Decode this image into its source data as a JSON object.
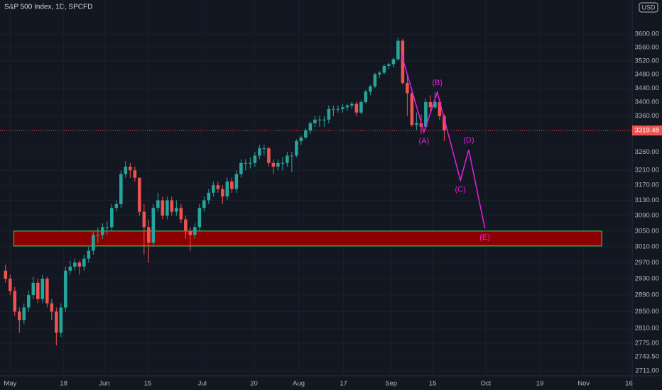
{
  "chart_data": {
    "type": "candlestick",
    "title": "S&P 500 Index, 1D, SPCFD",
    "currency": "USD",
    "yscale": "log",
    "ylim": [
      2700,
      3705
    ],
    "xlim": [
      -1.2,
      135.7
    ],
    "yticks": [
      {
        "value": 3600,
        "label": "3600.00"
      },
      {
        "value": 3560,
        "label": "3560.00"
      },
      {
        "value": 3520,
        "label": "3520.00"
      },
      {
        "value": 3480,
        "label": "3480.00"
      },
      {
        "value": 3440,
        "label": "3440.00"
      },
      {
        "value": 3400,
        "label": "3400.00"
      },
      {
        "value": 3360,
        "label": "3360.00"
      },
      {
        "value": 3260,
        "label": "3260.00"
      },
      {
        "value": 3210,
        "label": "3210.00"
      },
      {
        "value": 3170,
        "label": "3170.00"
      },
      {
        "value": 3130,
        "label": "3130.00"
      },
      {
        "value": 3090,
        "label": "3090.00"
      },
      {
        "value": 3050,
        "label": "3050.00"
      },
      {
        "value": 3010,
        "label": "3010.00"
      },
      {
        "value": 2970,
        "label": "2970.00"
      },
      {
        "value": 2930,
        "label": "2930.00"
      },
      {
        "value": 2890,
        "label": "2890.00"
      },
      {
        "value": 2850,
        "label": "2850.00"
      },
      {
        "value": 2810,
        "label": "2810.00"
      },
      {
        "value": 2775,
        "label": "2775.00"
      },
      {
        "value": 2743.5,
        "label": "2743.50"
      },
      {
        "value": 2711,
        "label": "2711.00"
      }
    ],
    "xticks": [
      {
        "value": 1,
        "label": "May"
      },
      {
        "value": 12.6,
        "label": "18"
      },
      {
        "value": 21.4,
        "label": "Jun"
      },
      {
        "value": 30.8,
        "label": "15"
      },
      {
        "value": 42.6,
        "label": "Jul"
      },
      {
        "value": 53.8,
        "label": "20"
      },
      {
        "value": 63.5,
        "label": "Aug"
      },
      {
        "value": 73.2,
        "label": "17"
      },
      {
        "value": 83.5,
        "label": "Sep"
      },
      {
        "value": 92.5,
        "label": "15"
      },
      {
        "value": 104,
        "label": "Oct"
      },
      {
        "value": 115.7,
        "label": "19"
      },
      {
        "value": 125.2,
        "label": "Nov"
      },
      {
        "value": 135,
        "label": "16"
      }
    ],
    "up_color": "#26a69a",
    "down_color": "#ef5350",
    "grid": true,
    "last_price": 3319.48,
    "candles": [
      [
        2950,
        2965,
        2920,
        2930
      ],
      [
        2930,
        2940,
        2890,
        2900
      ],
      [
        2900,
        2910,
        2840,
        2850
      ],
      [
        2850,
        2860,
        2800,
        2830
      ],
      [
        2830,
        2870,
        2820,
        2860
      ],
      [
        2860,
        2900,
        2850,
        2890
      ],
      [
        2890,
        2935,
        2880,
        2920
      ],
      [
        2920,
        2930,
        2870,
        2880
      ],
      [
        2880,
        2940,
        2870,
        2930
      ],
      [
        2930,
        2935,
        2860,
        2870
      ],
      [
        2870,
        2880,
        2830,
        2850
      ],
      [
        2850,
        2860,
        2770,
        2800
      ],
      [
        2800,
        2870,
        2790,
        2860
      ],
      [
        2860,
        2960,
        2850,
        2950
      ],
      [
        2950,
        2975,
        2940,
        2960
      ],
      [
        2960,
        2980,
        2950,
        2970
      ],
      [
        2970,
        2975,
        2940,
        2960
      ],
      [
        2960,
        2990,
        2950,
        2980
      ],
      [
        2980,
        3010,
        2970,
        3000
      ],
      [
        3000,
        3050,
        2990,
        3040
      ],
      [
        3040,
        3060,
        3020,
        3040
      ],
      [
        3040,
        3070,
        3030,
        3060
      ],
      [
        3060,
        3075,
        3040,
        3060
      ],
      [
        3060,
        3120,
        3050,
        3110
      ],
      [
        3110,
        3130,
        3100,
        3120
      ],
      [
        3120,
        3210,
        3110,
        3200
      ],
      [
        3200,
        3235,
        3190,
        3220
      ],
      [
        3220,
        3230,
        3190,
        3210
      ],
      [
        3210,
        3220,
        3180,
        3190
      ],
      [
        3190,
        3190,
        3090,
        3100
      ],
      [
        3100,
        3120,
        2990,
        3060
      ],
      [
        3060,
        3080,
        2970,
        3020
      ],
      [
        3020,
        3120,
        3010,
        3110
      ],
      [
        3110,
        3150,
        3100,
        3130
      ],
      [
        3130,
        3140,
        3080,
        3090
      ],
      [
        3090,
        3140,
        3080,
        3130
      ],
      [
        3130,
        3140,
        3090,
        3100
      ],
      [
        3100,
        3130,
        3090,
        3110
      ],
      [
        3110,
        3120,
        3070,
        3080
      ],
      [
        3080,
        3090,
        3030,
        3050
      ],
      [
        3050,
        3060,
        3000,
        3040
      ],
      [
        3040,
        3070,
        3030,
        3060
      ],
      [
        3060,
        3120,
        3050,
        3110
      ],
      [
        3110,
        3140,
        3100,
        3130
      ],
      [
        3130,
        3160,
        3120,
        3150
      ],
      [
        3150,
        3180,
        3140,
        3170
      ],
      [
        3170,
        3180,
        3150,
        3160
      ],
      [
        3160,
        3170,
        3120,
        3140
      ],
      [
        3140,
        3190,
        3130,
        3180
      ],
      [
        3180,
        3190,
        3150,
        3160
      ],
      [
        3160,
        3210,
        3150,
        3200
      ],
      [
        3200,
        3240,
        3190,
        3230
      ],
      [
        3230,
        3240,
        3210,
        3230
      ],
      [
        3230,
        3245,
        3215,
        3230
      ],
      [
        3230,
        3260,
        3220,
        3250
      ],
      [
        3250,
        3280,
        3240,
        3270
      ],
      [
        3270,
        3280,
        3250,
        3270
      ],
      [
        3270,
        3275,
        3220,
        3230
      ],
      [
        3230,
        3240,
        3200,
        3220
      ],
      [
        3220,
        3240,
        3210,
        3230
      ],
      [
        3230,
        3245,
        3210,
        3230
      ],
      [
        3230,
        3260,
        3220,
        3250
      ],
      [
        3250,
        3260,
        3205,
        3250
      ],
      [
        3250,
        3295,
        3245,
        3290
      ],
      [
        3290,
        3305,
        3280,
        3300
      ],
      [
        3300,
        3325,
        3295,
        3320
      ],
      [
        3320,
        3345,
        3310,
        3340
      ],
      [
        3340,
        3360,
        3330,
        3350
      ],
      [
        3350,
        3360,
        3330,
        3350
      ],
      [
        3350,
        3360,
        3330,
        3350
      ],
      [
        3350,
        3390,
        3340,
        3380
      ],
      [
        3380,
        3390,
        3360,
        3380
      ],
      [
        3380,
        3390,
        3370,
        3380
      ],
      [
        3380,
        3395,
        3370,
        3385
      ],
      [
        3385,
        3395,
        3375,
        3390
      ],
      [
        3390,
        3400,
        3380,
        3395
      ],
      [
        3395,
        3400,
        3360,
        3370
      ],
      [
        3370,
        3405,
        3365,
        3400
      ],
      [
        3400,
        3435,
        3395,
        3430
      ],
      [
        3430,
        3450,
        3420,
        3445
      ],
      [
        3445,
        3485,
        3440,
        3480
      ],
      [
        3480,
        3490,
        3470,
        3485
      ],
      [
        3485,
        3510,
        3480,
        3505
      ],
      [
        3505,
        3515,
        3495,
        3510
      ],
      [
        3510,
        3530,
        3500,
        3525
      ],
      [
        3525,
        3590,
        3520,
        3580
      ],
      [
        3580,
        3585,
        3450,
        3455
      ],
      [
        3455,
        3480,
        3360,
        3425
      ],
      [
        3425,
        3430,
        3330,
        3335
      ],
      [
        3335,
        3370,
        3320,
        3340
      ],
      [
        3340,
        3365,
        3310,
        3330
      ],
      [
        3330,
        3410,
        3325,
        3400
      ],
      [
        3400,
        3420,
        3370,
        3385
      ],
      [
        3385,
        3430,
        3380,
        3400
      ],
      [
        3400,
        3410,
        3350,
        3360
      ],
      [
        3360,
        3365,
        3290,
        3320
      ]
    ],
    "wave": [
      {
        "label": "(A)",
        "x": 90.6,
        "price": 3315
      },
      {
        "label": "(B)",
        "x": 93.5,
        "price": 3428
      },
      {
        "label": "(C)",
        "x": 98.5,
        "price": 3183
      },
      {
        "label": "(D)",
        "x": 100.3,
        "price": 3266
      },
      {
        "label": "(E)",
        "x": 103.8,
        "price": 3057
      }
    ],
    "wave_start": {
      "x": 85.7,
      "price": 3542
    },
    "zone": {
      "top": 3050,
      "bottom": 3012,
      "from": 1.8,
      "to": 129.1
    }
  }
}
